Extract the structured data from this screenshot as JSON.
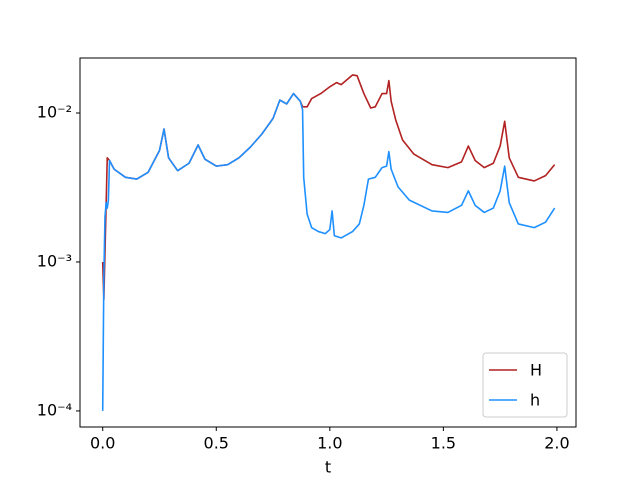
{
  "chart_data": {
    "type": "line",
    "xlabel": "t",
    "yscale": "log",
    "legend": "lower right",
    "xlim": [
      -0.1,
      2.084
    ],
    "ylim": [
      7.8e-05,
      0.0234
    ],
    "xticks": [
      {
        "value": 0,
        "label": "0.0"
      },
      {
        "value": 0.5,
        "label": "0.5"
      },
      {
        "value": 1,
        "label": "1.0"
      },
      {
        "value": 1.5,
        "label": "1.5"
      },
      {
        "value": 2,
        "label": "2.0"
      }
    ],
    "yticks": [
      {
        "value": 0.0001,
        "label": "10⁻⁴"
      },
      {
        "value": 0.001,
        "label": "10⁻³"
      },
      {
        "value": 0.01,
        "label": "10⁻²"
      }
    ],
    "series": [
      {
        "name": "H",
        "color": "#b22222",
        "x": [
          0,
          0.005,
          0.02,
          0.03,
          0.05,
          0.1,
          0.15,
          0.2,
          0.25,
          0.27,
          0.29,
          0.33,
          0.38,
          0.42,
          0.45,
          0.5,
          0.55,
          0.6,
          0.65,
          0.7,
          0.75,
          0.78,
          0.81,
          0.84,
          0.87,
          0.88,
          0.9,
          0.92,
          0.96,
          1.0,
          1.03,
          1.05,
          1.1,
          1.12,
          1.15,
          1.18,
          1.2,
          1.23,
          1.25,
          1.26,
          1.27,
          1.29,
          1.32,
          1.37,
          1.45,
          1.52,
          1.58,
          1.61,
          1.64,
          1.68,
          1.72,
          1.75,
          1.77,
          1.79,
          1.83,
          1.9,
          1.95,
          1.99
        ],
        "values": [
          0.001,
          0.00056,
          0.005,
          0.0048,
          0.0042,
          0.0037,
          0.0036,
          0.004,
          0.0056,
          0.0078,
          0.005,
          0.0041,
          0.0046,
          0.0061,
          0.0049,
          0.0044,
          0.0045,
          0.005,
          0.0059,
          0.0072,
          0.0092,
          0.0122,
          0.0115,
          0.0135,
          0.012,
          0.011,
          0.011,
          0.0125,
          0.0135,
          0.015,
          0.016,
          0.0155,
          0.018,
          0.0178,
          0.0135,
          0.0108,
          0.011,
          0.0135,
          0.0135,
          0.0165,
          0.012,
          0.009,
          0.0066,
          0.0053,
          0.0045,
          0.0043,
          0.0047,
          0.006,
          0.0048,
          0.0043,
          0.0046,
          0.006,
          0.0088,
          0.005,
          0.0037,
          0.0035,
          0.0038,
          0.0045
        ]
      },
      {
        "name": "h",
        "color": "#1e90ff",
        "x": [
          0,
          0.005,
          0.01,
          0.015,
          0.02,
          0.025,
          0.03,
          0.05,
          0.1,
          0.15,
          0.2,
          0.25,
          0.27,
          0.29,
          0.33,
          0.38,
          0.42,
          0.45,
          0.5,
          0.55,
          0.6,
          0.65,
          0.7,
          0.75,
          0.78,
          0.81,
          0.84,
          0.87,
          0.88,
          0.885,
          0.9,
          0.92,
          0.95,
          0.98,
          1.0,
          1.01,
          1.02,
          1.05,
          1.1,
          1.13,
          1.15,
          1.17,
          1.2,
          1.23,
          1.25,
          1.26,
          1.27,
          1.3,
          1.35,
          1.45,
          1.52,
          1.58,
          1.61,
          1.64,
          1.68,
          1.72,
          1.75,
          1.77,
          1.79,
          1.83,
          1.9,
          1.95,
          1.99
        ],
        "values": [
          0.0001,
          0.0008,
          0.002,
          0.0025,
          0.0023,
          0.0026,
          0.0048,
          0.0042,
          0.0037,
          0.0036,
          0.004,
          0.0056,
          0.0078,
          0.005,
          0.0041,
          0.0046,
          0.0061,
          0.0049,
          0.0044,
          0.0045,
          0.005,
          0.0059,
          0.0072,
          0.0092,
          0.0122,
          0.0115,
          0.0135,
          0.012,
          0.0105,
          0.0037,
          0.0021,
          0.0017,
          0.0016,
          0.00155,
          0.00165,
          0.0022,
          0.0015,
          0.00145,
          0.0016,
          0.0018,
          0.0024,
          0.0036,
          0.0037,
          0.0043,
          0.0044,
          0.0055,
          0.0042,
          0.0032,
          0.0026,
          0.0022,
          0.00215,
          0.0024,
          0.003,
          0.0024,
          0.00215,
          0.0023,
          0.003,
          0.0044,
          0.0025,
          0.0018,
          0.0017,
          0.00185,
          0.0023
        ]
      }
    ]
  }
}
